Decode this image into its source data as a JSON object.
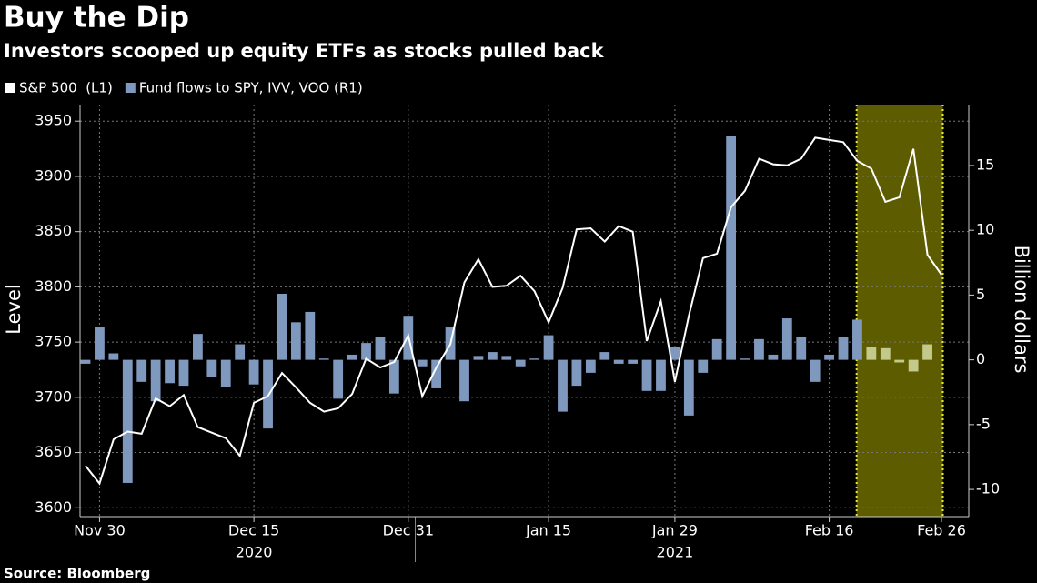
{
  "chart_data": {
    "type": "combo",
    "title": "Buy the Dip",
    "subtitle": "Investors scooped up equity ETFs as stocks pulled back",
    "source": "Source: Bloomberg",
    "ylabel": "Level",
    "y2label": "Billion dollars",
    "categories": [
      null,
      "Nov 30",
      null,
      null,
      null,
      null,
      null,
      null,
      null,
      null,
      null,
      null,
      "Dec 15",
      null,
      null,
      null,
      null,
      null,
      null,
      null,
      null,
      null,
      null,
      "Dec 31",
      null,
      null,
      null,
      null,
      null,
      null,
      null,
      null,
      null,
      "Jan 15",
      null,
      null,
      null,
      null,
      null,
      null,
      null,
      null,
      "Jan 29",
      null,
      null,
      null,
      null,
      null,
      null,
      null,
      null,
      null,
      null,
      "Feb 16",
      null,
      null,
      null,
      null,
      null,
      null,
      null,
      "Feb 26"
    ],
    "years": [
      "2020",
      "2021"
    ],
    "series": [
      {
        "name": "S&P 500  (L1)",
        "type": "line",
        "axis": "y",
        "color": "#ffffff",
        "values": [
          3638,
          3622,
          3662,
          3669,
          3667,
          3699,
          3692,
          3702,
          3673,
          3668,
          3663,
          3647,
          3695,
          3701,
          3722,
          3709,
          3695,
          3687,
          3690,
          3703,
          3735,
          3727,
          3732,
          3756,
          3701,
          3727,
          3748,
          3804,
          3825,
          3800,
          3801,
          3810,
          3796,
          3768,
          3799,
          3852,
          3853,
          3841,
          3855,
          3850,
          3751,
          3787,
          3714,
          3774,
          3826,
          3830,
          3872,
          3887,
          3916,
          3911,
          3910,
          3916,
          3935,
          3933,
          3931,
          3914,
          3907,
          3877,
          3881,
          3925,
          3829,
          3811
        ]
      },
      {
        "name": "Fund flows to SPY, IVV, VOO (R1)",
        "type": "bar",
        "axis": "y2",
        "color": "#7f98bd",
        "values": [
          -0.3,
          2.5,
          0.5,
          -9.5,
          -1.7,
          -3.2,
          -1.8,
          -2,
          2,
          -1.3,
          -2.1,
          1.2,
          -1.9,
          -5.3,
          5.1,
          2.9,
          3.7,
          0.1,
          -3,
          0.4,
          1.3,
          1.8,
          -2.6,
          3.4,
          -0.5,
          -2.2,
          2.5,
          -3.2,
          0.3,
          0.6,
          0.3,
          -0.5,
          0.1,
          1.9,
          -4,
          -2,
          -1,
          0.6,
          -0.3,
          -0.3,
          -2.4,
          -2.4,
          1,
          -4.3,
          -1,
          1.6,
          17.3,
          0.1,
          1.6,
          0.4,
          3.2,
          1.8,
          -1.7,
          0.4,
          1.8,
          3.1,
          1,
          0.9,
          -0.2,
          -0.9,
          1.2,
          null
        ]
      }
    ],
    "ylim": [
      3592,
      3965
    ],
    "yticks": [
      3600,
      3650,
      3700,
      3750,
      3800,
      3850,
      3900,
      3950
    ],
    "y2lim": [
      -12.1,
      19.7
    ],
    "y2ticks": [
      -10,
      -5,
      0,
      5,
      10,
      15
    ],
    "grid": true,
    "highlight": {
      "from": 55,
      "to": 61,
      "color": "#5e5c00",
      "border": "#e8e82a",
      "bar_color": "#c3c98a"
    }
  }
}
